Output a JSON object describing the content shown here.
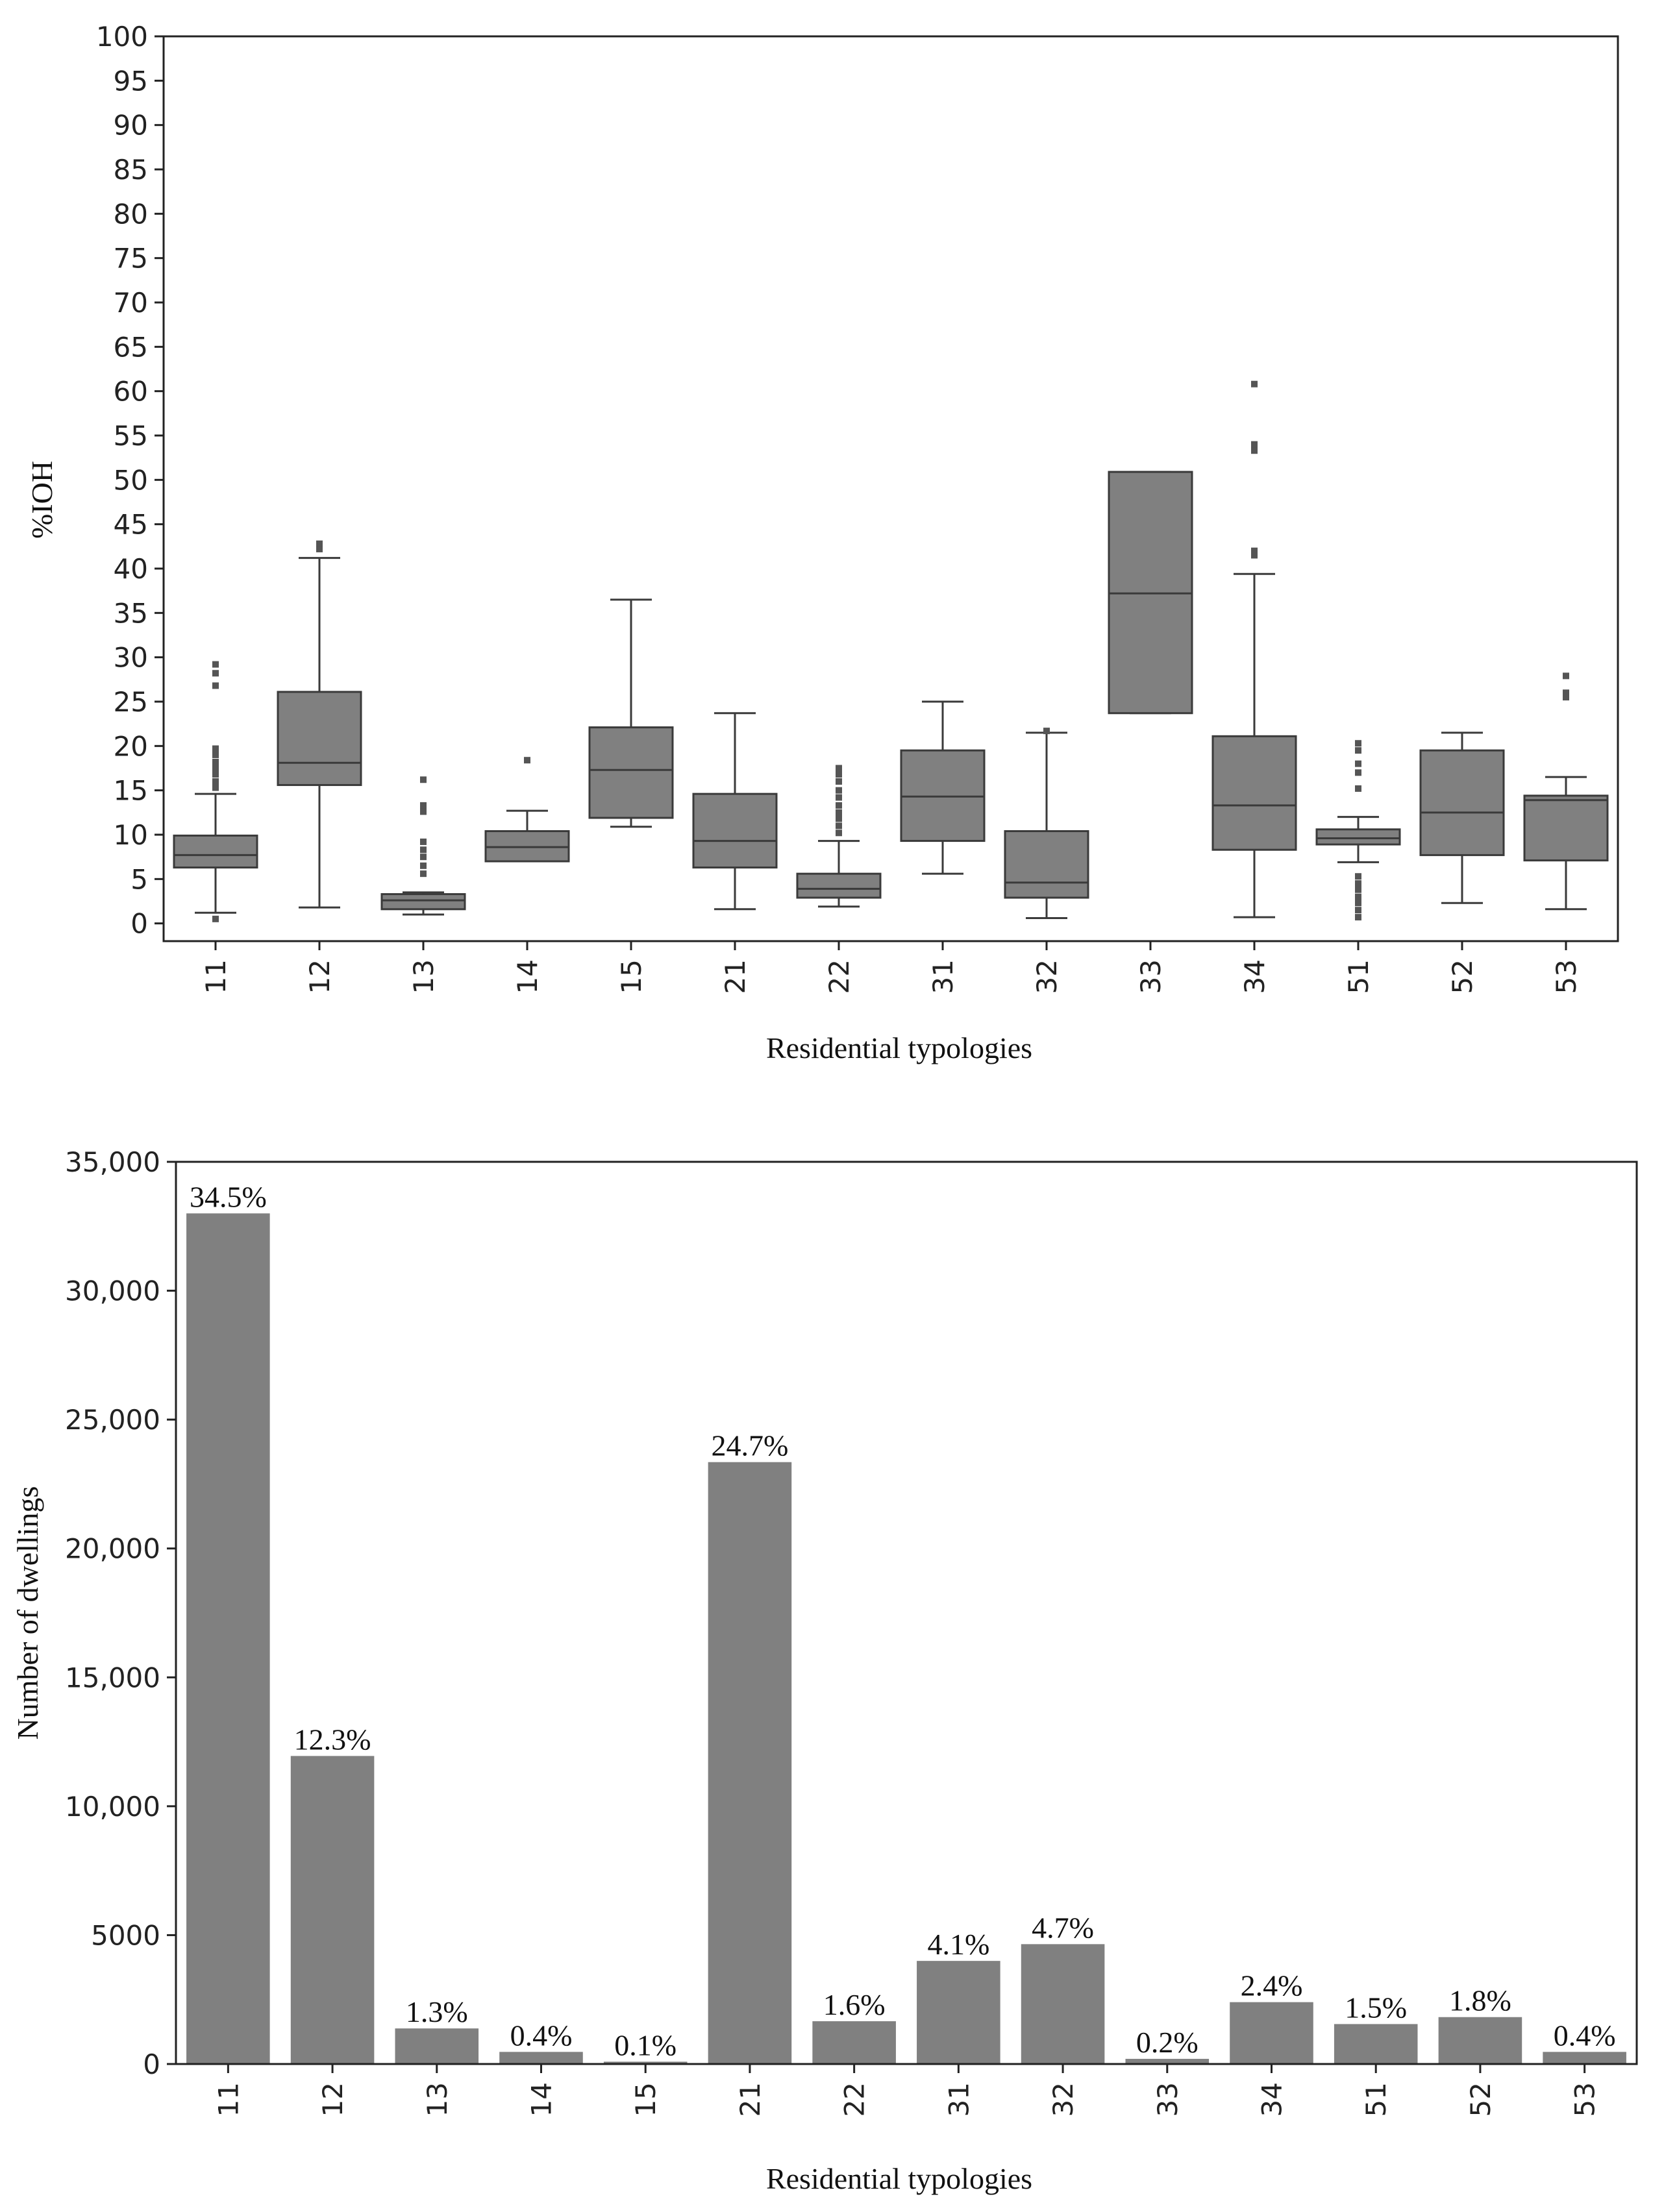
{
  "chart_data": [
    {
      "type": "box",
      "title": "",
      "xlabel": "Residential typologies",
      "ylabel": "%IOH",
      "ylim": [
        -2,
        100
      ],
      "yticks": [
        "0",
        "5",
        "10",
        "15",
        "20",
        "25",
        "30",
        "35",
        "40",
        "45",
        "50",
        "55",
        "60",
        "65",
        "70",
        "75",
        "80",
        "85",
        "90",
        "95",
        "100"
      ],
      "categories": [
        "11",
        "12",
        "13",
        "14",
        "15",
        "21",
        "22",
        "31",
        "32",
        "33",
        "34",
        "51",
        "52",
        "53"
      ],
      "colors": {
        "box": "#808080",
        "line": "#3a3a3a",
        "frame": "#222222"
      },
      "boxes": [
        {
          "whisker_low": 1.2,
          "q1": 6.3,
          "median": 7.7,
          "q3": 9.9,
          "whisker_high": 14.6,
          "outliers": [
            0.5,
            15.3,
            16.0,
            16.8,
            17.5,
            18.2,
            19.0,
            19.7,
            26.8,
            28.2,
            29.2
          ]
        },
        {
          "whisker_low": 1.8,
          "q1": 15.6,
          "median": 18.1,
          "q3": 26.1,
          "whisker_high": 41.2,
          "outliers": [
            42.2,
            42.8
          ]
        },
        {
          "whisker_low": 1.0,
          "q1": 1.6,
          "median": 2.6,
          "q3": 3.3,
          "whisker_high": 3.5,
          "outliers": [
            5.6,
            6.5,
            7.5,
            8.3,
            9.2,
            12.6,
            13.3,
            16.2
          ]
        },
        {
          "whisker_low": 7.0,
          "q1": 7.0,
          "median": 8.6,
          "q3": 10.4,
          "whisker_high": 12.7,
          "outliers": [
            18.4
          ]
        },
        {
          "whisker_low": 10.9,
          "q1": 11.9,
          "median": 17.3,
          "q3": 22.1,
          "whisker_high": 36.5,
          "outliers": []
        },
        {
          "whisker_low": 1.6,
          "q1": 6.3,
          "median": 9.3,
          "q3": 14.6,
          "whisker_high": 23.7,
          "outliers": []
        },
        {
          "whisker_low": 1.9,
          "q1": 2.9,
          "median": 3.9,
          "q3": 5.6,
          "whisker_high": 9.3,
          "outliers": [
            10.2,
            11.0,
            11.8,
            12.5,
            13.3,
            14.2,
            15.0,
            16.0,
            16.8,
            17.5
          ]
        },
        {
          "whisker_low": 5.6,
          "q1": 9.3,
          "median": 14.3,
          "q3": 19.5,
          "whisker_high": 25.0,
          "outliers": []
        },
        {
          "whisker_low": 0.6,
          "q1": 2.9,
          "median": 4.6,
          "q3": 10.4,
          "whisker_high": 21.5,
          "outliers": [
            21.7
          ]
        },
        {
          "whisker_low": 23.7,
          "q1": 23.7,
          "median": 37.2,
          "q3": 50.9,
          "whisker_high": 50.9,
          "outliers": []
        },
        {
          "whisker_low": 0.7,
          "q1": 8.3,
          "median": 13.3,
          "q3": 21.1,
          "whisker_high": 39.4,
          "outliers": [
            41.5,
            42.0,
            53.3,
            54.0,
            60.8
          ]
        },
        {
          "whisker_low": 6.9,
          "q1": 8.9,
          "median": 9.6,
          "q3": 10.6,
          "whisker_high": 12.0,
          "outliers": [
            0.7,
            1.5,
            2.3,
            3.0,
            3.8,
            4.5,
            5.3,
            15.2,
            17.0,
            18.0,
            19.5,
            20.3
          ]
        },
        {
          "whisker_low": 2.3,
          "q1": 7.7,
          "median": 12.5,
          "q3": 19.5,
          "whisker_high": 21.5,
          "outliers": []
        },
        {
          "whisker_low": 1.6,
          "q1": 7.1,
          "median": 13.9,
          "q3": 14.4,
          "whisker_high": 16.5,
          "outliers": [
            25.5,
            26.0,
            27.9
          ]
        }
      ]
    },
    {
      "type": "bar",
      "title": "",
      "xlabel": "Residential typologies",
      "ylabel": "Number of dwellings",
      "ylim": [
        0,
        35000
      ],
      "yticks": [
        "0",
        "5000",
        "10,000",
        "15,000",
        "20,000",
        "25,000",
        "30,000",
        "35,000"
      ],
      "categories": [
        "11",
        "12",
        "13",
        "14",
        "15",
        "21",
        "22",
        "31",
        "32",
        "33",
        "34",
        "51",
        "52",
        "53"
      ],
      "values": [
        33000,
        11950,
        1380,
        470,
        90,
        23350,
        1660,
        4000,
        4650,
        200,
        2400,
        1550,
        1820,
        470
      ],
      "labels": [
        "34.5%",
        "12.3%",
        "1.3%",
        "0.4%",
        "0.1%",
        "24.7%",
        "1.6%",
        "4.1%",
        "4.7%",
        "0.2%",
        "2.4%",
        "1.5%",
        "1.8%",
        "0.4%"
      ],
      "colors": {
        "bar": "#808080",
        "frame": "#222222"
      }
    }
  ]
}
